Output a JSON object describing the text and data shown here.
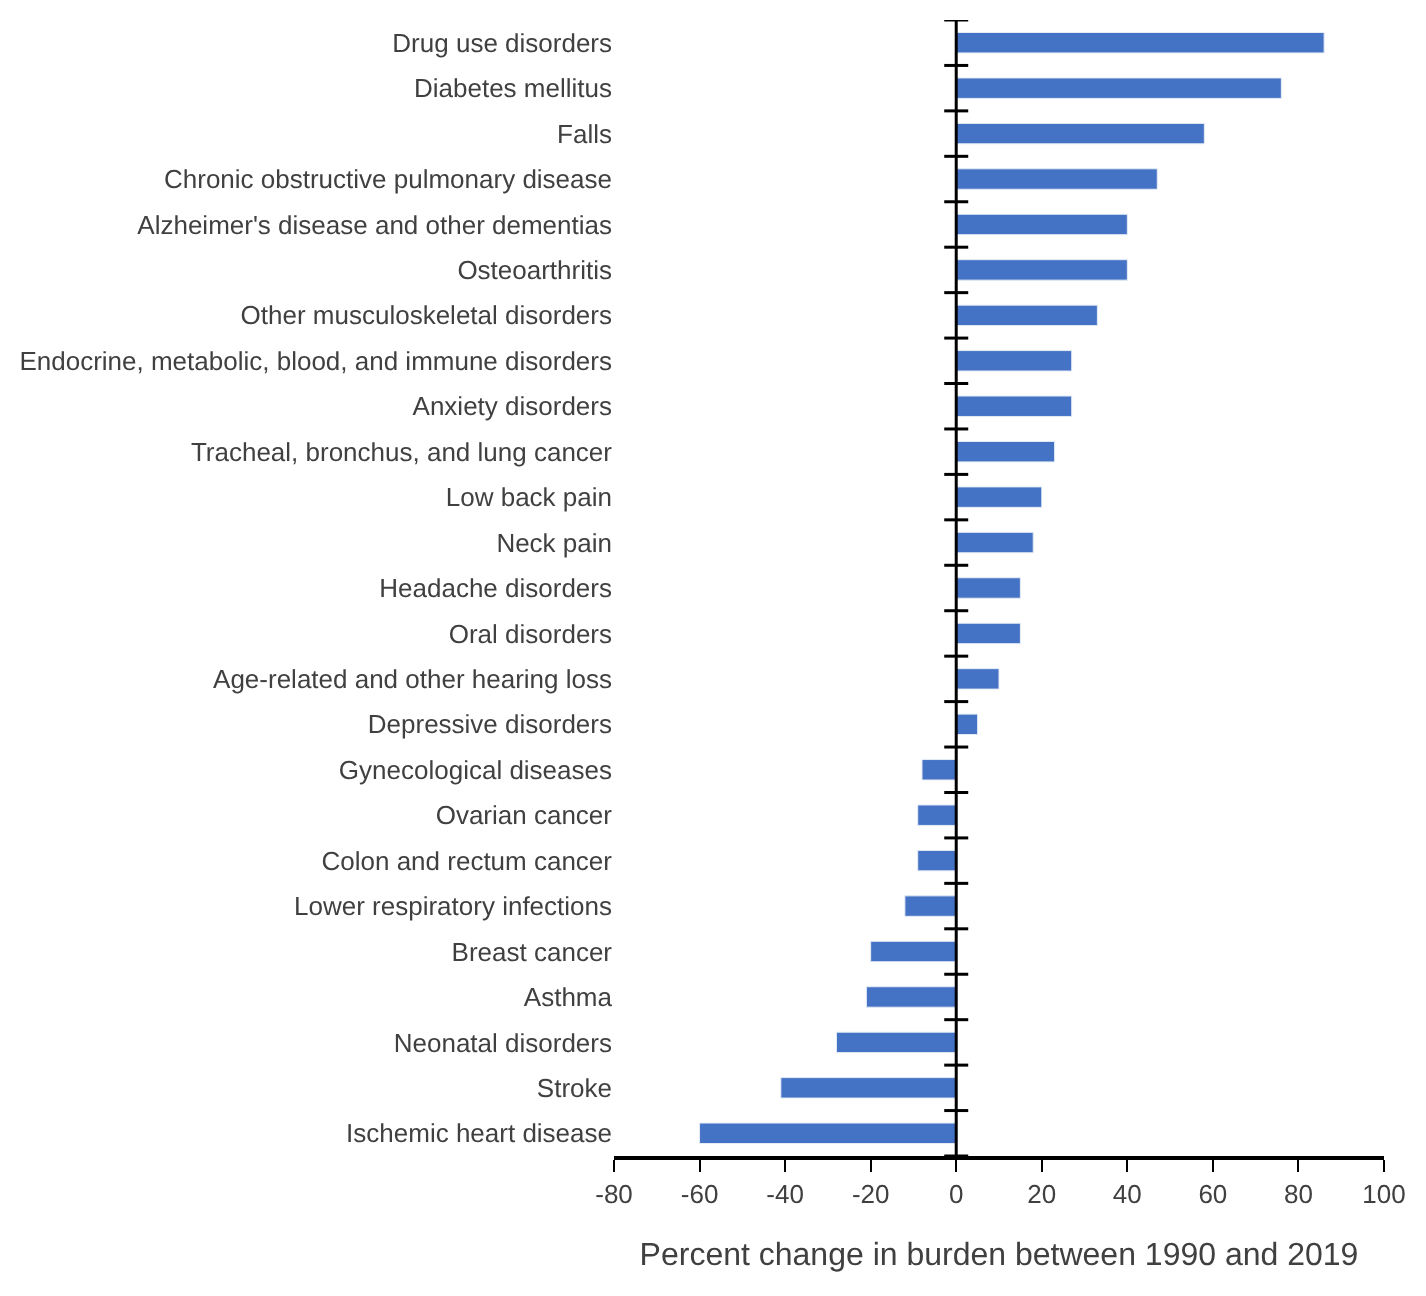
{
  "chart_data": {
    "type": "bar",
    "orientation": "horizontal",
    "xlabel": "Percent change in burden between 1990 and 2019",
    "categories": [
      "Drug use disorders",
      "Diabetes mellitus",
      "Falls",
      "Chronic obstructive pulmonary disease",
      "Alzheimer's disease and other dementias",
      "Osteoarthritis",
      "Other musculoskeletal disorders",
      "Endocrine, metabolic, blood, and immune disorders",
      "Anxiety disorders",
      "Tracheal, bronchus, and lung cancer",
      "Low back pain",
      "Neck pain",
      "Headache disorders",
      "Oral disorders",
      "Age-related and other hearing loss",
      "Depressive disorders",
      "Gynecological diseases",
      "Ovarian cancer",
      "Colon and rectum cancer",
      "Lower respiratory infections",
      "Breast cancer",
      "Asthma",
      "Neonatal disorders",
      "Stroke",
      "Ischemic heart disease"
    ],
    "values": [
      86,
      76,
      58,
      47,
      40,
      40,
      33,
      27,
      27,
      23,
      20,
      18,
      15,
      15,
      10,
      5,
      -8,
      -9,
      -9,
      -12,
      -20,
      -21,
      -28,
      -41,
      -60
    ],
    "color": "#4472c4",
    "xlim": [
      -80,
      100
    ],
    "xticks": [
      -80,
      -60,
      -40,
      -20,
      0,
      20,
      40,
      60,
      80,
      100
    ],
    "legend": false
  }
}
